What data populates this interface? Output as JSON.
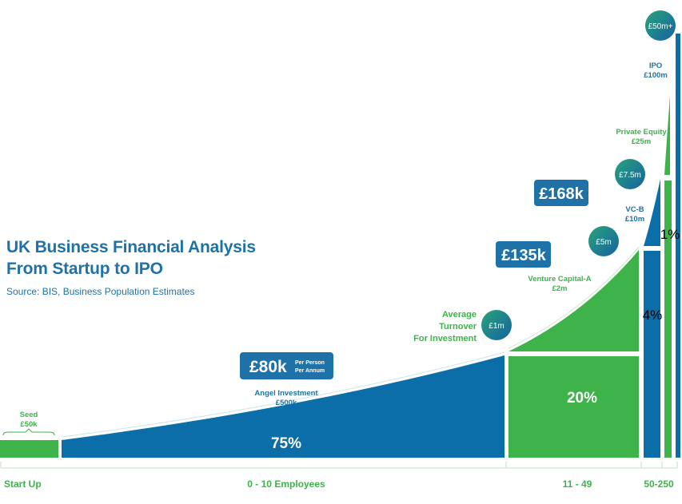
{
  "header": {
    "title_line1": "UK Business Financial Analysis",
    "title_line2": "From Startup to IPO",
    "source": "Source: BIS, Business Population Estimates"
  },
  "colors": {
    "blue": "#0b6ea8",
    "green": "#3db34a",
    "blue_bubble": "#1f7ab0",
    "green_dark": "#2e8f47"
  },
  "chart_data": {
    "type": "area",
    "title": "",
    "categories": [
      "Start Up",
      "0 - 10 Employees",
      "11 - 49",
      "50-250"
    ],
    "shares": [
      {
        "label": "75%",
        "value": 75,
        "category": "0 - 10 Employees"
      },
      {
        "label": "20%",
        "value": 20,
        "category": "11 - 49"
      },
      {
        "label": "4%",
        "value": 4,
        "category": "50-250"
      },
      {
        "label": "1%",
        "value": 1,
        "category": "50-250"
      }
    ],
    "funding_stages": [
      {
        "name": "Seed",
        "amount": "£50k"
      },
      {
        "name": "Angel Investment",
        "amount": "£500k"
      },
      {
        "name": "Venture Capital-A",
        "amount": "£2m"
      },
      {
        "name": "VC-B",
        "amount": "£10m"
      },
      {
        "name": "Private Equity",
        "amount": "£25m"
      },
      {
        "name": "IPO",
        "amount": "£100m"
      }
    ],
    "turnover_label": [
      "Average",
      "Turnover",
      "For Investment"
    ],
    "turnover_bubbles": [
      "£1m",
      "£5m",
      "£7.5m",
      "£50m+"
    ],
    "salary_boxes": [
      {
        "value": "£80k",
        "note1": "Per Person",
        "note2": "Per Annum"
      },
      {
        "value": "£135k"
      },
      {
        "value": "£168k"
      }
    ]
  }
}
